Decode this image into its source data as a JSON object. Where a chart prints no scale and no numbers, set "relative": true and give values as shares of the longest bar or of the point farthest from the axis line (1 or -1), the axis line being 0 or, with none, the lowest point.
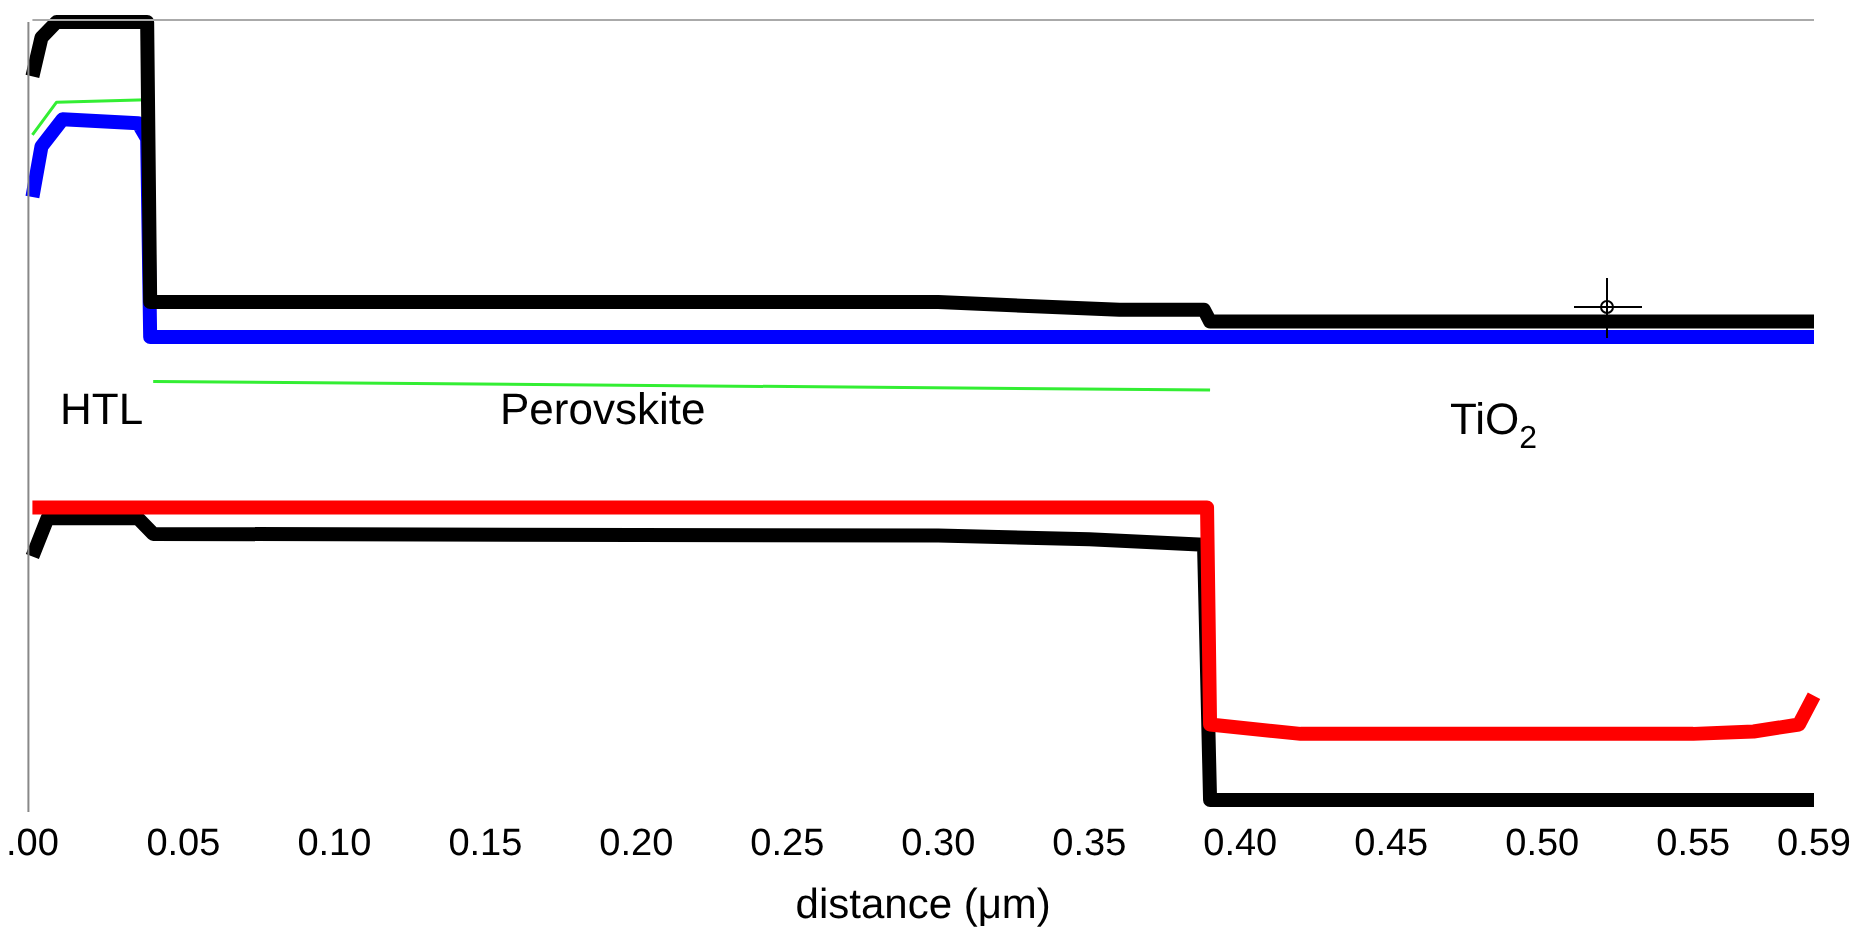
{
  "chart_data": {
    "type": "line",
    "relative": true,
    "xlabel": "distance (μm)",
    "xlim": [
      0,
      0.59
    ],
    "xticks": [
      {
        "value": 0,
        "label": ".00"
      },
      0.05,
      {
        "value": 0.1,
        "label": "0.10"
      },
      0.15,
      {
        "value": 0.2,
        "label": "0.20"
      },
      0.25,
      {
        "value": 0.3,
        "label": "0.30"
      },
      0.35,
      {
        "value": 0.4,
        "label": "0.40"
      },
      0.45,
      {
        "value": 0.5,
        "label": "0.50"
      },
      0.55,
      0.59
    ],
    "grid": false,
    "legend": false,
    "marker": "none",
    "line_style": "solid",
    "annotations": [
      "HTL",
      "Perovskite",
      "TiO$_{2}$"
    ],
    "series": [
      {
        "color": "#000000",
        "x": [
          0,
          0.003,
          0.008,
          0.038,
          0.039,
          0.3,
          0.36,
          0.388,
          0.39,
          0.59
        ],
        "values": [
          0.93,
          0.98,
          1,
          1,
          0.64,
          0.64,
          0.63,
          0.63,
          0.615,
          0.615
        ]
      },
      {
        "color": "#33ee33",
        "x": [
          0,
          0.008,
          0.038,
          0.039,
          0.04,
          0.39
        ],
        "values": [
          0.855,
          0.897,
          0.9,
          null,
          0.538,
          0.527
        ]
      },
      {
        "color": "#0000ff",
        "x": [
          0,
          0.003,
          0.01,
          0.035,
          0.038,
          0.039,
          0.59
        ],
        "values": [
          0.775,
          0.84,
          0.875,
          0.87,
          0.85,
          0.595,
          0.595
        ]
      },
      {
        "color": "#ff0000",
        "x": [
          0,
          0.389,
          0.39,
          0.42,
          0.55,
          0.57,
          0.585,
          0.59
        ],
        "values": [
          0.376,
          0.376,
          0.097,
          0.085,
          0.085,
          0.088,
          0.097,
          0.134
        ]
      },
      {
        "color": "#000000",
        "x": [
          0,
          0.005,
          0.035,
          0.04,
          0.3,
          0.35,
          0.388,
          0.39,
          0.59
        ],
        "values": [
          0.313,
          0.362,
          0.362,
          0.342,
          0.34,
          0.335,
          0.328,
          0,
          0
        ]
      }
    ]
  }
}
